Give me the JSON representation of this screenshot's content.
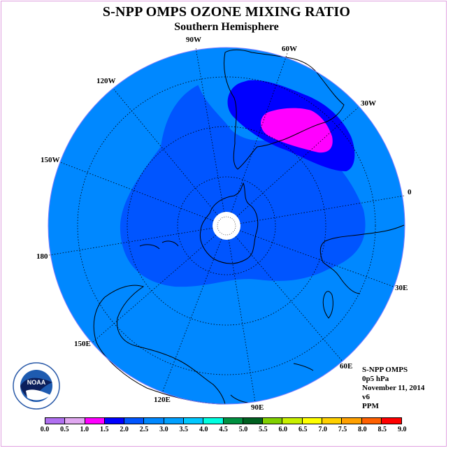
{
  "title": "S-NPP OMPS OZONE MIXING RATIO",
  "subtitle": "Southern Hemisphere",
  "info": {
    "instrument": "S-NPP OMPS",
    "level": "0p5 hPa",
    "date": "November 11, 2014",
    "version": "v6",
    "units": "PPM"
  },
  "longitude_labels": [
    "90W",
    "60W",
    "30W",
    "0",
    "30E",
    "60E",
    "90E",
    "120E",
    "150E",
    "180",
    "150W",
    "120W"
  ],
  "logo": {
    "name": "noaa-logo",
    "text": "NOAA"
  },
  "colorbar": {
    "ticks": [
      "0.0",
      "0.5",
      "1.0",
      "1.5",
      "2.0",
      "2.5",
      "3.0",
      "3.5",
      "4.0",
      "4.5",
      "5.0",
      "5.5",
      "6.0",
      "6.5",
      "7.0",
      "7.5",
      "8.0",
      "8.5",
      "9.0"
    ],
    "colors": [
      "#b070f0",
      "#e0a8f0",
      "#ff00ff",
      "#0000ff",
      "#0055ff",
      "#0088ff",
      "#00a0ff",
      "#00c8ff",
      "#00ffe0",
      "#009040",
      "#006020",
      "#80d000",
      "#c8f000",
      "#ffff00",
      "#ffd000",
      "#ffa000",
      "#ff6000",
      "#ff0000",
      "#804000"
    ]
  },
  "map_colors": {
    "range_2_0_2_5": "#0055ff",
    "range_2_5_3_0": "#0088ff",
    "range_3_0_3_5": "#00a0ff",
    "range_1_5_2_0": "#0000ff",
    "range_1_0_1_5": "#ff00ff"
  }
}
